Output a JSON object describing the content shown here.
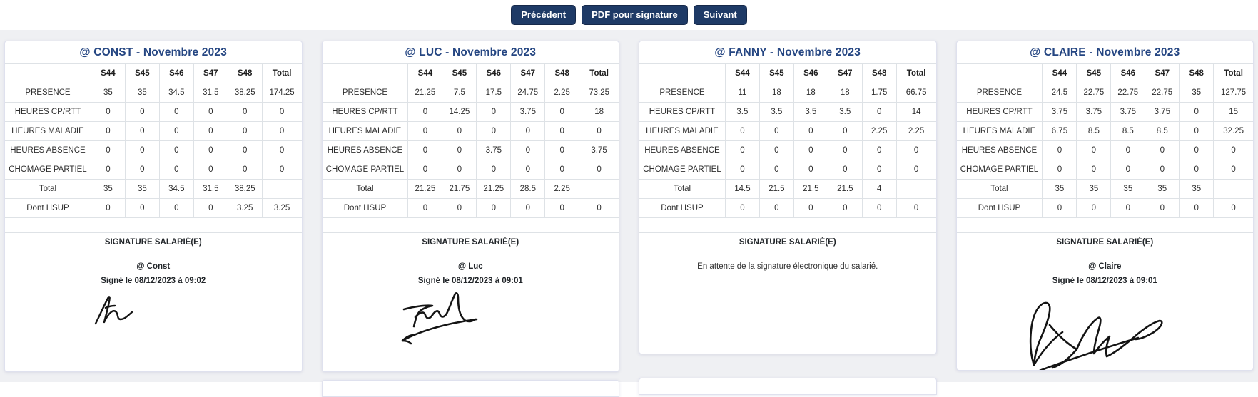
{
  "toolbar": {
    "buttons": [
      {
        "label": "Précédent"
      },
      {
        "label": "PDF pour signature"
      },
      {
        "label": "Suivant"
      }
    ]
  },
  "columns": [
    "S44",
    "S45",
    "S46",
    "S47",
    "S48",
    "Total"
  ],
  "colors": {
    "button_navy": "#1e3a66",
    "title_navy": "#254682",
    "table_border": "#dee2e6",
    "page_background": "#eff0f3",
    "signature_ink": "#141414"
  },
  "cards": [
    {
      "title": "@ CONST - Novembre 2023",
      "rows": [
        {
          "label": "PRESENCE",
          "values": [
            "35",
            "35",
            "34.5",
            "31.5",
            "38.25",
            "174.25"
          ]
        },
        {
          "label": "HEURES CP/RTT",
          "values": [
            "0",
            "0",
            "0",
            "0",
            "0",
            "0"
          ]
        },
        {
          "label": "HEURES MALADIE",
          "values": [
            "0",
            "0",
            "0",
            "0",
            "0",
            "0"
          ]
        },
        {
          "label": "HEURES ABSENCE",
          "values": [
            "0",
            "0",
            "0",
            "0",
            "0",
            "0"
          ]
        },
        {
          "label": "CHOMAGE PARTIEL",
          "values": [
            "0",
            "0",
            "0",
            "0",
            "0",
            "0"
          ]
        },
        {
          "label": "Total",
          "values": [
            "35",
            "35",
            "34.5",
            "31.5",
            "38.25",
            ""
          ]
        },
        {
          "label": "Dont HSUP",
          "values": [
            "0",
            "0",
            "0",
            "0",
            "3.25",
            "3.25"
          ]
        }
      ],
      "signature_heading": "SIGNATURE SALARIÉ(E)",
      "has_signature": true,
      "signer_name": "@ Const",
      "signed_line": "Signé le 08/12/2023 à 09:02"
    },
    {
      "title": "@ LUC - Novembre 2023",
      "rows": [
        {
          "label": "PRESENCE",
          "values": [
            "21.25",
            "7.5",
            "17.5",
            "24.75",
            "2.25",
            "73.25"
          ]
        },
        {
          "label": "HEURES CP/RTT",
          "values": [
            "0",
            "14.25",
            "0",
            "3.75",
            "0",
            "18"
          ]
        },
        {
          "label": "HEURES MALADIE",
          "values": [
            "0",
            "0",
            "0",
            "0",
            "0",
            "0"
          ]
        },
        {
          "label": "HEURES ABSENCE",
          "values": [
            "0",
            "0",
            "3.75",
            "0",
            "0",
            "3.75"
          ]
        },
        {
          "label": "CHOMAGE PARTIEL",
          "values": [
            "0",
            "0",
            "0",
            "0",
            "0",
            "0"
          ]
        },
        {
          "label": "Total",
          "values": [
            "21.25",
            "21.75",
            "21.25",
            "28.5",
            "2.25",
            ""
          ]
        },
        {
          "label": "Dont HSUP",
          "values": [
            "0",
            "0",
            "0",
            "0",
            "0",
            "0"
          ]
        }
      ],
      "signature_heading": "SIGNATURE SALARIÉ(E)",
      "has_signature": true,
      "signer_name": "@ Luc",
      "signed_line": "Signé le 08/12/2023 à 09:01"
    },
    {
      "title": "@ FANNY - Novembre 2023",
      "rows": [
        {
          "label": "PRESENCE",
          "values": [
            "11",
            "18",
            "18",
            "18",
            "1.75",
            "66.75"
          ]
        },
        {
          "label": "HEURES CP/RTT",
          "values": [
            "3.5",
            "3.5",
            "3.5",
            "3.5",
            "0",
            "14"
          ]
        },
        {
          "label": "HEURES MALADIE",
          "values": [
            "0",
            "0",
            "0",
            "0",
            "2.25",
            "2.25"
          ]
        },
        {
          "label": "HEURES ABSENCE",
          "values": [
            "0",
            "0",
            "0",
            "0",
            "0",
            "0"
          ]
        },
        {
          "label": "CHOMAGE PARTIEL",
          "values": [
            "0",
            "0",
            "0",
            "0",
            "0",
            "0"
          ]
        },
        {
          "label": "Total",
          "values": [
            "14.5",
            "21.5",
            "21.5",
            "21.5",
            "4",
            ""
          ]
        },
        {
          "label": "Dont HSUP",
          "values": [
            "0",
            "0",
            "0",
            "0",
            "0",
            "0"
          ]
        }
      ],
      "signature_heading": "SIGNATURE SALARIÉ(E)",
      "has_signature": false,
      "waiting_text": "En attente de la signature électronique du salarié."
    },
    {
      "title": "@ CLAIRE - Novembre 2023",
      "rows": [
        {
          "label": "PRESENCE",
          "values": [
            "24.5",
            "22.75",
            "22.75",
            "22.75",
            "35",
            "127.75"
          ]
        },
        {
          "label": "HEURES CP/RTT",
          "values": [
            "3.75",
            "3.75",
            "3.75",
            "3.75",
            "0",
            "15"
          ]
        },
        {
          "label": "HEURES MALADIE",
          "values": [
            "6.75",
            "8.5",
            "8.5",
            "8.5",
            "0",
            "32.25"
          ]
        },
        {
          "label": "HEURES ABSENCE",
          "values": [
            "0",
            "0",
            "0",
            "0",
            "0",
            "0"
          ]
        },
        {
          "label": "CHOMAGE PARTIEL",
          "values": [
            "0",
            "0",
            "0",
            "0",
            "0",
            "0"
          ]
        },
        {
          "label": "Total",
          "values": [
            "35",
            "35",
            "35",
            "35",
            "35",
            ""
          ]
        },
        {
          "label": "Dont HSUP",
          "values": [
            "0",
            "0",
            "0",
            "0",
            "0",
            "0"
          ]
        }
      ],
      "signature_heading": "SIGNATURE SALARIÉ(E)",
      "has_signature": true,
      "signer_name": "@ Claire",
      "signed_line": "Signé le 08/12/2023 à 09:01"
    }
  ]
}
